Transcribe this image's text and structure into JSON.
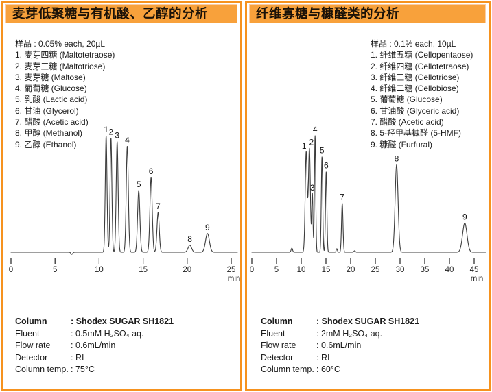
{
  "colors": {
    "panel_border": "#F6921E",
    "header_bg": "#F8A13B",
    "header_edge": "#FBCDA4",
    "trace": "#3c3c3c"
  },
  "panels": [
    {
      "title": "麦芽低聚糖与有机酸、乙醇的分析",
      "sample_header": "样品 : 0.05% each, 20µL",
      "samples": [
        "1. 麦芽四糖 (Maltotetraose)",
        "2. 麦芽三糖 (Maltotriose)",
        "3. 麦芽糖 (Maltose)",
        "4. 葡萄糖 (Glucose)",
        "5. 乳酸 (Lactic acid)",
        "6. 甘油 (Glycerol)",
        "7. 醋酸 (Acetic acid)",
        "8. 甲醇 (Methanol)",
        "9. 乙醇 (Ethanol)"
      ],
      "conditions": [
        {
          "label": "Column",
          "value": ": Shodex SUGAR SH1821",
          "bold": true
        },
        {
          "label": "Eluent",
          "value": ": 0.5mM H₂SO₄ aq."
        },
        {
          "label": "Flow rate",
          "value": ": 0.6mL/min"
        },
        {
          "label": "Detector",
          "value": ": RI"
        },
        {
          "label": "Column temp.",
          "value": ": 75°C"
        }
      ]
    },
    {
      "title": "纤维寡糖与糠醛类的分析",
      "sample_header": "样品 : 0.1% each, 10µL",
      "samples": [
        "1. 纤维五糖 (Cellopentaose)",
        "2. 纤维四糖 (Cellotetraose)",
        "3. 纤维三糖 (Cellotriose)",
        "4. 纤维二糖 (Cellobiose)",
        "5. 葡萄糖 (Glucose)",
        "6. 甘油酸 (Glyceric acid)",
        "7. 醋酸 (Acetic acid)",
        "8. 5-羟甲基糠醛 (5-HMF)",
        "9. 糠醛 (Furfural)"
      ],
      "conditions": [
        {
          "label": "Column",
          "value": ": Shodex SUGAR SH1821",
          "bold": true
        },
        {
          "label": "Eluent",
          "value": ": 2mM H₂SO₄ aq."
        },
        {
          "label": "Flow rate",
          "value": ": 0.6mL/min"
        },
        {
          "label": "Detector",
          "value": ": RI"
        },
        {
          "label": "Column temp.",
          "value": ": 60°C"
        }
      ]
    }
  ],
  "chart_data": [
    {
      "type": "line",
      "title": "麦芽低聚糖与有机酸、乙醇的分析 (chromatogram)",
      "xlabel": "min",
      "ylabel": "RI response (unlabeled)",
      "xlim": [
        0,
        25.7
      ],
      "x_ticks": [
        0,
        5,
        10,
        15,
        20,
        25
      ],
      "grid": false,
      "peaks": [
        {
          "label": "1",
          "time": 10.8,
          "height": 1.0,
          "sigma": 0.1
        },
        {
          "label": "2",
          "time": 11.35,
          "height": 0.98,
          "sigma": 0.1
        },
        {
          "label": "3",
          "time": 12.05,
          "height": 0.95,
          "sigma": 0.11
        },
        {
          "label": "4",
          "time": 13.2,
          "height": 0.91,
          "sigma": 0.12
        },
        {
          "label": "5",
          "time": 14.5,
          "height": 0.53,
          "sigma": 0.13
        },
        {
          "label": "6",
          "time": 15.9,
          "height": 0.64,
          "sigma": 0.13
        },
        {
          "label": "7",
          "time": 16.7,
          "height": 0.34,
          "sigma": 0.13
        },
        {
          "label": "8",
          "time": 20.3,
          "height": 0.06,
          "sigma": 0.2
        },
        {
          "label": "9",
          "time": 22.3,
          "height": 0.16,
          "sigma": 0.22
        }
      ],
      "baseline_features": [
        {
          "time": 6.9,
          "height": -0.018,
          "sigma": 0.1
        }
      ]
    },
    {
      "type": "line",
      "title": "纤维寡糖与糠醛类的分析 (chromatogram)",
      "xlabel": "min",
      "ylabel": "RI response (unlabeled)",
      "xlim": [
        0,
        47.3
      ],
      "x_ticks": [
        0,
        5,
        10,
        15,
        20,
        25,
        30,
        35,
        40,
        45
      ],
      "grid": false,
      "peaks": [
        {
          "label": "1",
          "time": 11.0,
          "height": 0.86,
          "sigma": 0.2,
          "label_dx": -3
        },
        {
          "label": "2",
          "time": 11.65,
          "height": 0.89,
          "sigma": 0.2,
          "label_dx": 3
        },
        {
          "label": "3",
          "time": 12.25,
          "height": 0.5,
          "sigma": 0.12
        },
        {
          "label": "4",
          "time": 12.8,
          "height": 1.0,
          "sigma": 0.13
        },
        {
          "label": "5",
          "time": 14.2,
          "height": 0.82,
          "sigma": 0.14
        },
        {
          "label": "6",
          "time": 15.05,
          "height": 0.69,
          "sigma": 0.14
        },
        {
          "label": "7",
          "time": 18.3,
          "height": 0.42,
          "sigma": 0.15
        },
        {
          "label": "8",
          "time": 29.3,
          "height": 0.75,
          "sigma": 0.3
        },
        {
          "label": "9",
          "time": 43.1,
          "height": 0.25,
          "sigma": 0.45
        }
      ],
      "baseline_features": [
        {
          "time": 8.1,
          "height": 0.035,
          "sigma": 0.15
        },
        {
          "time": 17.2,
          "height": 0.03,
          "sigma": 0.12
        },
        {
          "time": 20.8,
          "height": 0.012,
          "sigma": 0.15
        }
      ]
    }
  ]
}
